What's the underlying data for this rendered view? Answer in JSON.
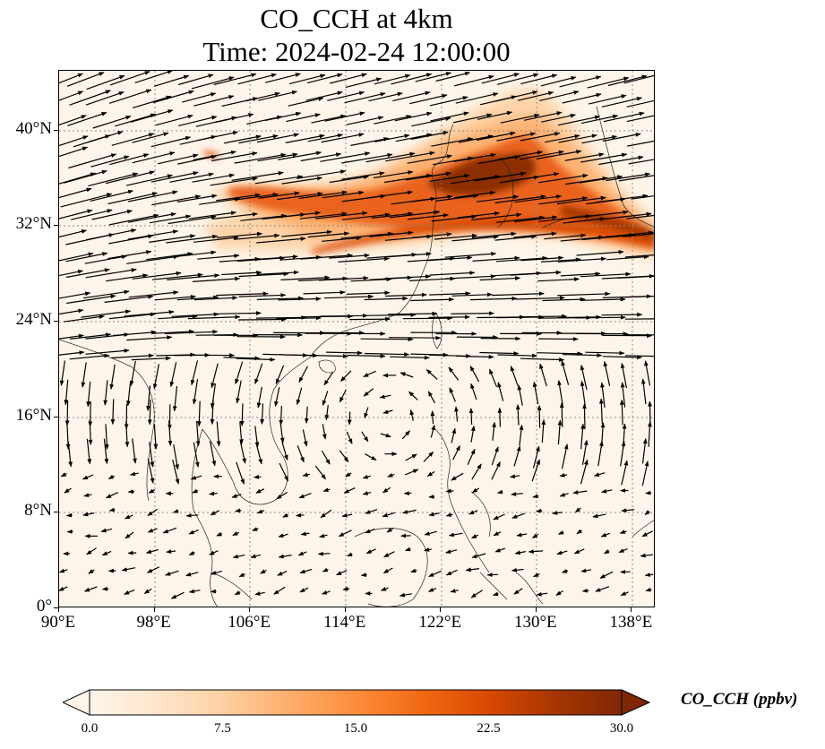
{
  "figure": {
    "title_line1": "CO_CCH at 4km",
    "title_line2": "Time: 2024-02-24 12:00:00"
  },
  "map": {
    "lon_range": [
      90,
      140
    ],
    "lat_range": [
      0,
      45
    ],
    "x_tick_labels": [
      "90°E",
      "98°E",
      "106°E",
      "114°E",
      "122°E",
      "130°E",
      "138°E"
    ],
    "x_tick_values": [
      90,
      98,
      106,
      114,
      122,
      130,
      138
    ],
    "y_tick_labels": [
      "0°",
      "8°N",
      "16°N",
      "24°N",
      "32°N",
      "40°N"
    ],
    "y_tick_values": [
      0,
      8,
      16,
      24,
      32,
      40
    ],
    "gridlines": "dotted grey at tick values",
    "background_color": "#fdf5e9",
    "vectors": "black wind arrows"
  },
  "colorbar": {
    "label": "CO_CCH (ppbv)",
    "tick_labels": [
      "0.0",
      "7.5",
      "15.0",
      "22.5",
      "30.0"
    ],
    "range": [
      0,
      30
    ],
    "colormap": [
      "#fff5eb",
      "#fee6ce",
      "#fdd0a2",
      "#fdae6b",
      "#fd8d3c",
      "#f16913",
      "#d94801",
      "#a63603",
      "#7f2704"
    ],
    "extend": "both"
  }
}
